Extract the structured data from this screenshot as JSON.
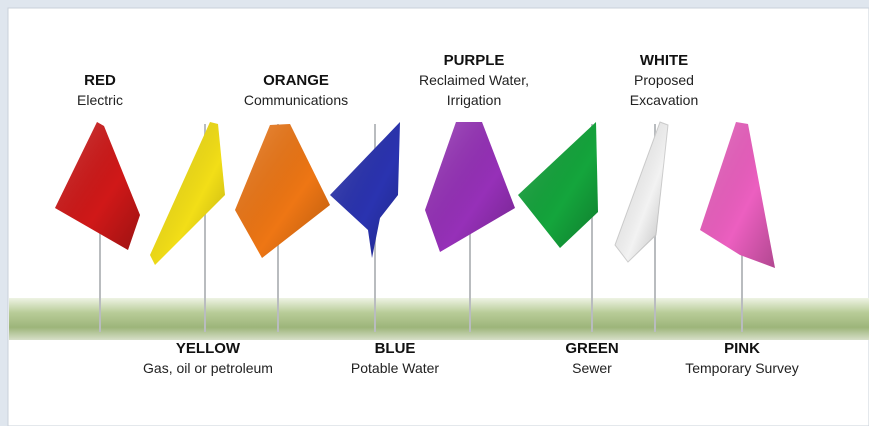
{
  "flags": [
    {
      "name": "RED",
      "meaning": [
        "Electric"
      ],
      "color": "#d01818"
    },
    {
      "name": "YELLOW",
      "meaning": [
        "Gas, oil or petroleum"
      ],
      "color": "#f2de17"
    },
    {
      "name": "ORANGE",
      "meaning": [
        "Communications"
      ],
      "color": "#ee7614"
    },
    {
      "name": "BLUE",
      "meaning": [
        "Potable Water"
      ],
      "color": "#2a33b0"
    },
    {
      "name": "PURPLE",
      "meaning": [
        "Reclaimed Water,",
        "Irrigation"
      ],
      "color": "#9630b8"
    },
    {
      "name": "GREEN",
      "meaning": [
        "Sewer"
      ],
      "color": "#14a53c"
    },
    {
      "name": "WHITE",
      "meaning": [
        "Proposed",
        "Excavation"
      ],
      "color": "#f2f2f2"
    },
    {
      "name": "PINK",
      "meaning": [
        "Temporary Survey"
      ],
      "color": "#ec5fc0"
    }
  ]
}
